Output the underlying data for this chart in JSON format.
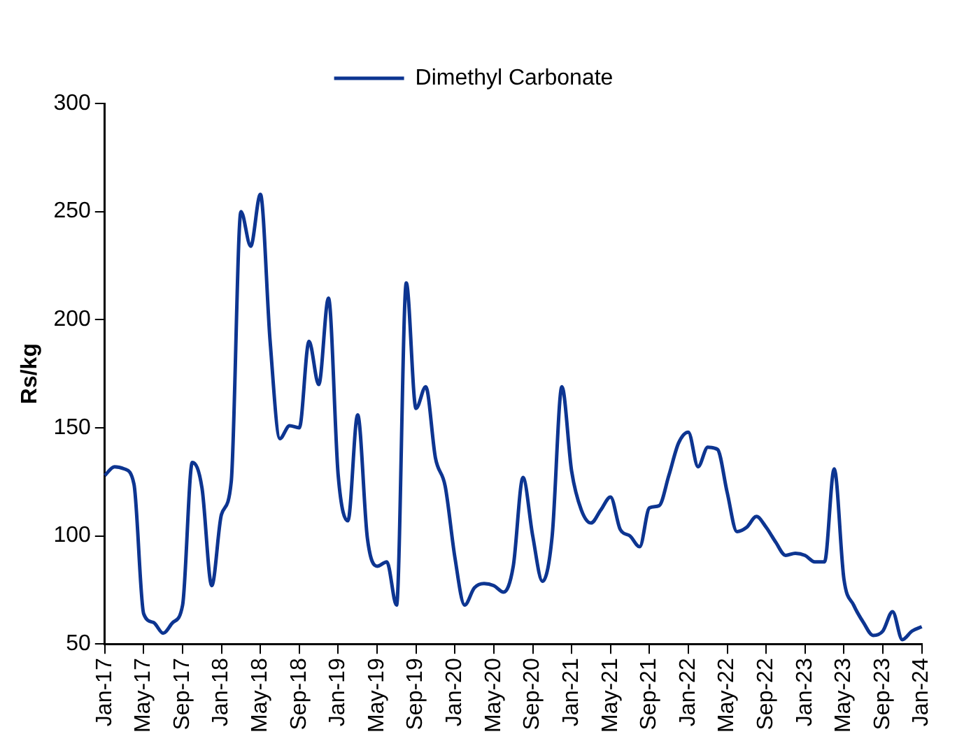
{
  "chart_data": {
    "type": "line",
    "ylabel": "Rs/kg",
    "categories": [
      "Jan-17",
      null,
      null,
      null,
      "May-17",
      null,
      null,
      null,
      "Sep-17",
      null,
      null,
      null,
      "Jan-18",
      null,
      null,
      null,
      "May-18",
      null,
      null,
      null,
      "Sep-18",
      null,
      null,
      null,
      "Jan-19",
      null,
      null,
      null,
      "May-19",
      null,
      null,
      null,
      "Sep-19",
      null,
      null,
      null,
      "Jan-20",
      null,
      null,
      null,
      "May-20",
      null,
      null,
      null,
      "Sep-20",
      null,
      null,
      null,
      "Jan-21",
      null,
      null,
      null,
      "May-21",
      null,
      null,
      null,
      "Sep-21",
      null,
      null,
      null,
      "Jan-22",
      null,
      null,
      null,
      "May-22",
      null,
      null,
      null,
      "Sep-22",
      null,
      null,
      null,
      "Jan-23",
      null,
      null,
      null,
      "May-23",
      null,
      null,
      null,
      "Sep-23",
      null,
      null,
      null,
      "Jan-24"
    ],
    "series": [
      {
        "name": "Dimethyl Carbonate",
        "color": "#0d3591",
        "values": [
          128,
          132,
          131,
          124,
          64,
          60,
          55,
          60,
          68,
          134,
          122,
          77,
          110,
          125,
          250,
          234,
          258,
          190,
          145,
          151,
          150,
          190,
          170,
          210,
          128,
          107,
          156,
          99,
          86,
          88,
          68,
          217,
          159,
          169,
          136,
          123,
          90,
          68,
          76,
          78,
          77,
          74,
          86,
          127,
          100,
          79,
          100,
          169,
          130,
          112,
          106,
          112,
          118,
          103,
          100,
          95,
          113,
          114,
          128,
          143,
          148,
          132,
          141,
          140,
          120,
          102,
          104,
          109,
          104,
          97,
          91,
          92,
          91,
          88,
          88,
          131,
          80,
          68,
          60,
          54,
          56,
          65,
          52,
          56,
          58
        ]
      }
    ],
    "ylim": [
      50,
      300
    ],
    "yticks": [
      50,
      100,
      150,
      200,
      250,
      300
    ],
    "grid": false,
    "legend": "top",
    "marker": "none",
    "line_style": "solid"
  }
}
